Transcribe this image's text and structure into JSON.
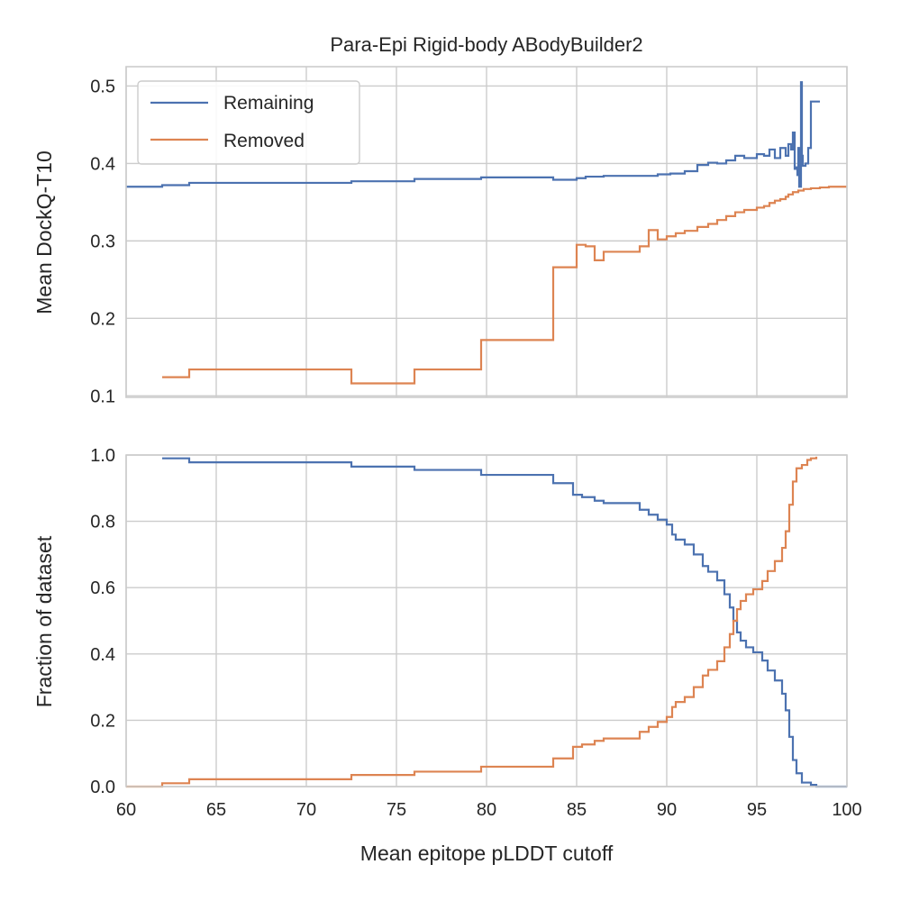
{
  "colors": {
    "remaining": "#4c72b0",
    "removed": "#dd8452"
  },
  "chart_data": [
    {
      "type": "line",
      "title": "Para-Epi Rigid-body ABodyBuilder2",
      "xlabel": "",
      "ylabel": "Mean DockQ-T10",
      "xlim": [
        60,
        100
      ],
      "ylim": [
        0.098,
        0.525
      ],
      "xticks": [
        60,
        65,
        70,
        75,
        80,
        85,
        90,
        95,
        100
      ],
      "xticklabels_visible": false,
      "yticks": [
        0.1,
        0.2,
        0.3,
        0.4,
        0.5
      ],
      "yticklabels": [
        "0.1",
        "0.2",
        "0.3",
        "0.4",
        "0.5"
      ],
      "grid": true,
      "legend": {
        "placement": "top-left",
        "entries": [
          "Remaining",
          "Removed"
        ]
      },
      "step": true,
      "series": [
        {
          "name": "Remaining",
          "color": "#4c72b0",
          "x": [
            60,
            62.0,
            63.5,
            72.5,
            76.0,
            79.7,
            83.7,
            85.0,
            85.5,
            86.5,
            88.5,
            89.5,
            90.2,
            91.0,
            91.7,
            92.3,
            92.8,
            93.3,
            93.8,
            94.3,
            95.0,
            95.4,
            95.7,
            96.0,
            96.3,
            96.6,
            96.75,
            96.9,
            97.0,
            97.1,
            97.15,
            97.25,
            97.3,
            97.35,
            97.45,
            97.5,
            97.55,
            97.7,
            97.85,
            98.0,
            98.3,
            98.5
          ],
          "values": [
            0.37,
            0.372,
            0.375,
            0.377,
            0.38,
            0.382,
            0.379,
            0.381,
            0.383,
            0.384,
            0.384,
            0.386,
            0.387,
            0.39,
            0.398,
            0.401,
            0.4,
            0.404,
            0.41,
            0.407,
            0.412,
            0.41,
            0.418,
            0.407,
            0.42,
            0.41,
            0.425,
            0.418,
            0.44,
            0.393,
            0.395,
            0.385,
            0.42,
            0.37,
            0.505,
            0.41,
            0.397,
            0.4,
            0.42,
            0.48,
            0.48,
            0.48
          ]
        },
        {
          "name": "Removed",
          "color": "#dd8452",
          "x": [
            62.0,
            63.5,
            72.5,
            76.0,
            79.7,
            83.7,
            85.0,
            85.5,
            86.0,
            86.5,
            88.5,
            89.0,
            89.5,
            90.0,
            90.5,
            91.0,
            91.7,
            92.3,
            92.8,
            93.3,
            93.8,
            94.3,
            95.0,
            95.4,
            95.7,
            96.0,
            96.3,
            96.6,
            96.75,
            97.0,
            97.3,
            97.6,
            98.0,
            98.5,
            99.0,
            100
          ],
          "values": [
            0.124,
            0.134,
            0.116,
            0.134,
            0.172,
            0.266,
            0.295,
            0.293,
            0.275,
            0.286,
            0.293,
            0.314,
            0.302,
            0.306,
            0.31,
            0.313,
            0.318,
            0.322,
            0.327,
            0.332,
            0.337,
            0.34,
            0.343,
            0.345,
            0.349,
            0.352,
            0.354,
            0.357,
            0.36,
            0.363,
            0.365,
            0.367,
            0.368,
            0.369,
            0.37,
            0.37
          ]
        }
      ]
    },
    {
      "type": "line",
      "title": "",
      "xlabel": "Mean epitope pLDDT cutoff",
      "ylabel": "Fraction of dataset",
      "xlim": [
        60,
        100
      ],
      "ylim": [
        0.0,
        1.0
      ],
      "xticks": [
        60,
        65,
        70,
        75,
        80,
        85,
        90,
        95,
        100
      ],
      "xticklabels": [
        "60",
        "65",
        "70",
        "75",
        "80",
        "85",
        "90",
        "95",
        "100"
      ],
      "yticks": [
        0.0,
        0.2,
        0.4,
        0.6,
        0.8,
        1.0
      ],
      "yticklabels": [
        "0.0",
        "0.2",
        "0.4",
        "0.6",
        "0.8",
        "1.0"
      ],
      "grid": true,
      "step": true,
      "series": [
        {
          "name": "Remaining",
          "color": "#4c72b0",
          "x": [
            62.0,
            63.5,
            72.5,
            76.0,
            79.7,
            83.7,
            84.8,
            85.3,
            86.0,
            86.5,
            88.5,
            89.0,
            89.5,
            90.0,
            90.3,
            90.5,
            91.0,
            91.5,
            92.0,
            92.3,
            92.8,
            93.2,
            93.5,
            93.7,
            93.9,
            94.1,
            94.4,
            94.8,
            95.3,
            95.6,
            96.0,
            96.4,
            96.6,
            96.8,
            97.0,
            97.2,
            97.5,
            98.0,
            98.3,
            100
          ],
          "values": [
            0.99,
            0.978,
            0.965,
            0.955,
            0.94,
            0.915,
            0.88,
            0.873,
            0.862,
            0.855,
            0.835,
            0.82,
            0.805,
            0.79,
            0.76,
            0.745,
            0.73,
            0.7,
            0.665,
            0.648,
            0.622,
            0.58,
            0.54,
            0.5,
            0.465,
            0.44,
            0.42,
            0.405,
            0.38,
            0.35,
            0.32,
            0.28,
            0.23,
            0.15,
            0.08,
            0.04,
            0.012,
            0.005,
            0.0,
            0.0
          ]
        },
        {
          "name": "Removed",
          "color": "#dd8452",
          "x": [
            60,
            62.0,
            63.5,
            72.5,
            76.0,
            79.7,
            83.7,
            84.8,
            85.3,
            86.0,
            86.5,
            88.5,
            89.0,
            89.5,
            90.0,
            90.3,
            90.5,
            91.0,
            91.5,
            92.0,
            92.3,
            92.8,
            93.2,
            93.5,
            93.7,
            93.9,
            94.1,
            94.4,
            94.8,
            95.3,
            95.6,
            96.0,
            96.4,
            96.6,
            96.8,
            97.0,
            97.2,
            97.5,
            97.8,
            98.0,
            98.3
          ],
          "values": [
            0.0,
            0.01,
            0.022,
            0.035,
            0.045,
            0.06,
            0.085,
            0.12,
            0.127,
            0.138,
            0.145,
            0.165,
            0.18,
            0.195,
            0.21,
            0.24,
            0.255,
            0.27,
            0.3,
            0.335,
            0.352,
            0.378,
            0.42,
            0.46,
            0.5,
            0.535,
            0.56,
            0.58,
            0.595,
            0.62,
            0.65,
            0.68,
            0.72,
            0.77,
            0.85,
            0.92,
            0.96,
            0.97,
            0.985,
            0.99,
            0.995
          ]
        }
      ]
    }
  ]
}
